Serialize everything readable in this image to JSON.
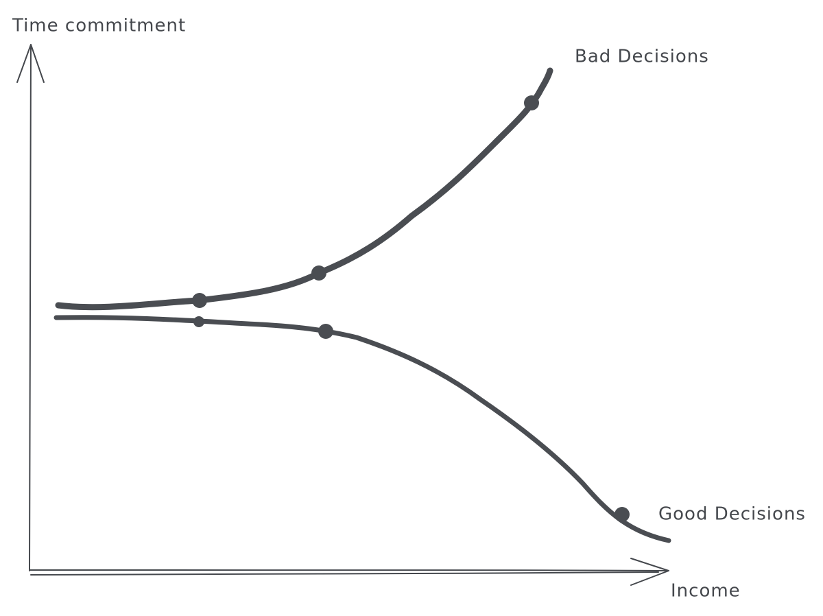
{
  "axes": {
    "y_label": "Time commitment",
    "x_label": "Income"
  },
  "curves": [
    {
      "label": "Bad Decisions"
    },
    {
      "label": "Good Decisions"
    }
  ]
}
